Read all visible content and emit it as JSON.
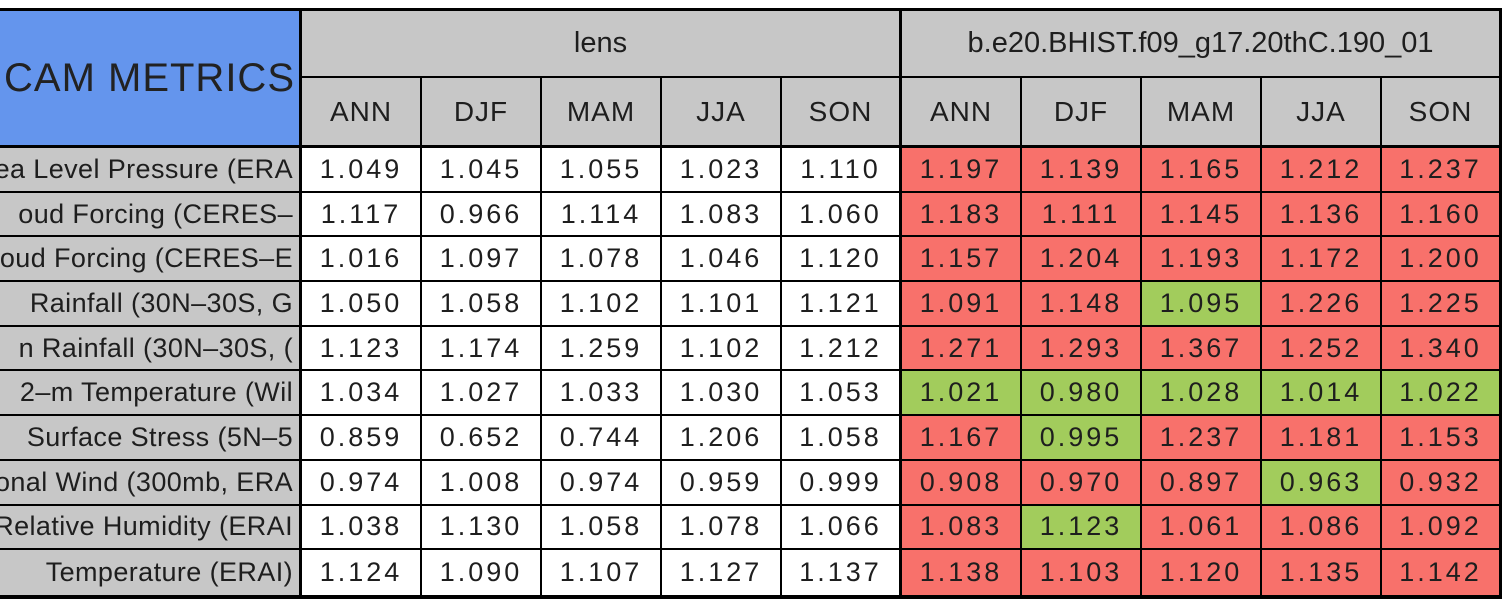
{
  "chart_data": {
    "type": "table",
    "title": "CAM METRICS",
    "column_groups": [
      "lens",
      "b.e20.BHIST.f09_g17.20thC.190_01"
    ],
    "columns": [
      "ANN",
      "DJF",
      "MAM",
      "JJA",
      "SON"
    ],
    "legend_note": "case cells shaded red or green versus lens baseline",
    "colors": {
      "red": "#F8716B",
      "green": "#A2CC5C",
      "header_gray": "#C7C7C7",
      "corner_blue": "#6495ED"
    },
    "rows": [
      {
        "label": "ea Level Pressure (ERA",
        "lens": [
          "1.049",
          "1.045",
          "1.055",
          "1.023",
          "1.110"
        ],
        "case": [
          "1.197",
          "1.139",
          "1.165",
          "1.212",
          "1.237"
        ],
        "case_colors": [
          "red",
          "red",
          "red",
          "red",
          "red"
        ]
      },
      {
        "label": "oud Forcing (CERES–",
        "lens": [
          "1.117",
          "0.966",
          "1.114",
          "1.083",
          "1.060"
        ],
        "case": [
          "1.183",
          "1.111",
          "1.145",
          "1.136",
          "1.160"
        ],
        "case_colors": [
          "red",
          "red",
          "red",
          "red",
          "red"
        ]
      },
      {
        "label": "oud Forcing (CERES–E",
        "lens": [
          "1.016",
          "1.097",
          "1.078",
          "1.046",
          "1.120"
        ],
        "case": [
          "1.157",
          "1.204",
          "1.193",
          "1.172",
          "1.200"
        ],
        "case_colors": [
          "red",
          "red",
          "red",
          "red",
          "red"
        ]
      },
      {
        "label": "Rainfall (30N–30S, G",
        "lens": [
          "1.050",
          "1.058",
          "1.102",
          "1.101",
          "1.121"
        ],
        "case": [
          "1.091",
          "1.148",
          "1.095",
          "1.226",
          "1.225"
        ],
        "case_colors": [
          "red",
          "red",
          "green",
          "red",
          "red"
        ]
      },
      {
        "label": "n Rainfall (30N–30S, (",
        "lens": [
          "1.123",
          "1.174",
          "1.259",
          "1.102",
          "1.212"
        ],
        "case": [
          "1.271",
          "1.293",
          "1.367",
          "1.252",
          "1.340"
        ],
        "case_colors": [
          "red",
          "red",
          "red",
          "red",
          "red"
        ]
      },
      {
        "label": "2–m Temperature (Wil",
        "lens": [
          "1.034",
          "1.027",
          "1.033",
          "1.030",
          "1.053"
        ],
        "case": [
          "1.021",
          "0.980",
          "1.028",
          "1.014",
          "1.022"
        ],
        "case_colors": [
          "green",
          "green",
          "green",
          "green",
          "green"
        ]
      },
      {
        "label": "Surface Stress (5N–5",
        "lens": [
          "0.859",
          "0.652",
          "0.744",
          "1.206",
          "1.058"
        ],
        "case": [
          "1.167",
          "0.995",
          "1.237",
          "1.181",
          "1.153"
        ],
        "case_colors": [
          "red",
          "green",
          "red",
          "red",
          "red"
        ]
      },
      {
        "label": "onal Wind (300mb, ERA",
        "lens": [
          "0.974",
          "1.008",
          "0.974",
          "0.959",
          "0.999"
        ],
        "case": [
          "0.908",
          "0.970",
          "0.897",
          "0.963",
          "0.932"
        ],
        "case_colors": [
          "red",
          "red",
          "red",
          "green",
          "red"
        ]
      },
      {
        "label": "Relative Humidity (ERAI",
        "lens": [
          "1.038",
          "1.130",
          "1.058",
          "1.078",
          "1.066"
        ],
        "case": [
          "1.083",
          "1.123",
          "1.061",
          "1.086",
          "1.092"
        ],
        "case_colors": [
          "red",
          "green",
          "red",
          "red",
          "red"
        ]
      },
      {
        "label": "Temperature (ERAI)",
        "lens": [
          "1.124",
          "1.090",
          "1.107",
          "1.127",
          "1.137"
        ],
        "case": [
          "1.138",
          "1.103",
          "1.120",
          "1.135",
          "1.142"
        ],
        "case_colors": [
          "red",
          "red",
          "red",
          "red",
          "red"
        ]
      }
    ]
  }
}
